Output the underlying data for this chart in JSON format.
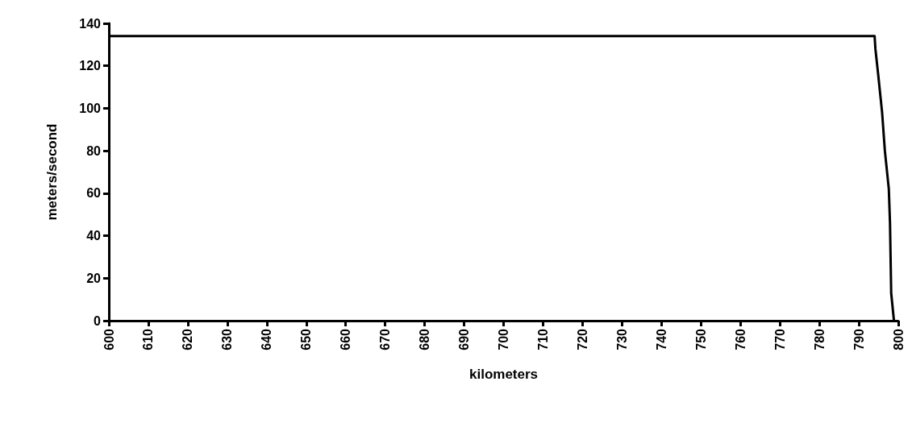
{
  "chart_data": {
    "type": "line",
    "xlabel": "kilometers",
    "ylabel": "meters/second",
    "x": [
      600,
      794,
      794.2,
      794.9,
      795.9,
      796.6,
      797.6,
      797.9,
      798.2,
      798.9
    ],
    "series": [
      {
        "color": "#000000",
        "values": [
          134,
          134,
          128,
          116,
          98,
          80,
          62,
          46,
          13,
          0
        ]
      }
    ],
    "xlim": [
      600,
      800
    ],
    "xticks": [
      600,
      610,
      620,
      630,
      640,
      650,
      660,
      670,
      680,
      690,
      700,
      710,
      720,
      730,
      740,
      750,
      760,
      770,
      780,
      790,
      800
    ],
    "ylim": [
      0,
      140
    ],
    "yticks": [
      0,
      20,
      40,
      60,
      80,
      100,
      120,
      140
    ],
    "marker": "none",
    "line_style": "solid"
  }
}
